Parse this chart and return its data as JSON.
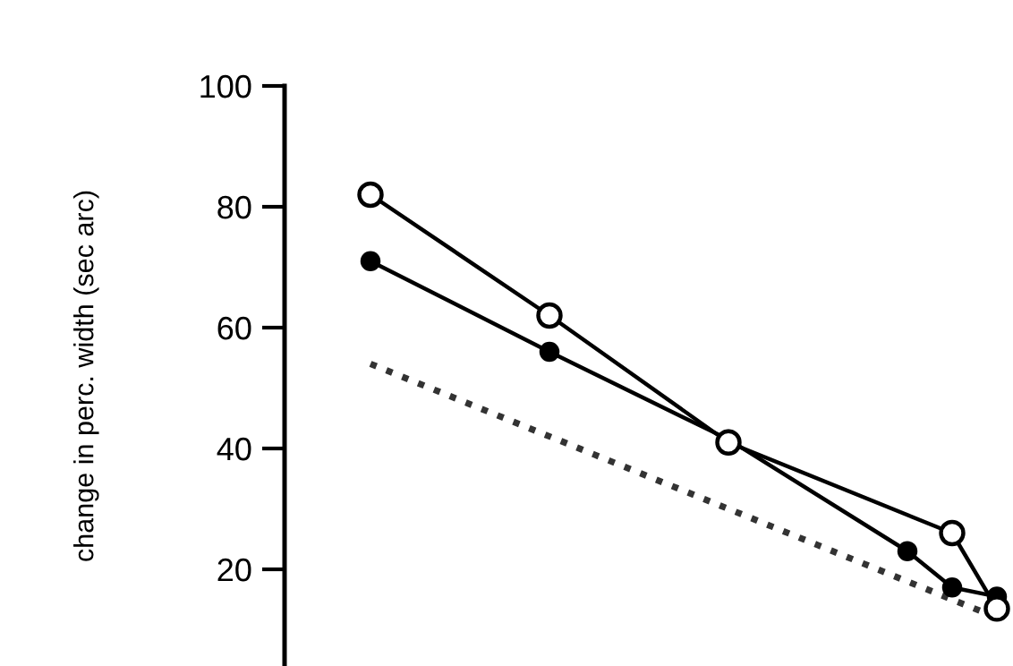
{
  "chart_data": {
    "type": "line",
    "ylabel": "change in perc. width (sec arc)",
    "categories": [
      null,
      null,
      null,
      null,
      null,
      null,
      null,
      null,
      null,
      null,
      null,
      null,
      null,
      null,
      null
    ],
    "series": [
      {
        "color": "#000000",
        "marker": "circle",
        "line_style": "solid",
        "values": [
          82,
          null,
          null,
          null,
          62,
          null,
          null,
          null,
          41,
          null,
          null,
          null,
          null,
          26,
          13.5
        ]
      },
      {
        "color": "#000000",
        "marker": "circle",
        "line_style": "solid",
        "values": [
          71,
          null,
          null,
          null,
          56,
          null,
          null,
          null,
          41.5,
          null,
          null,
          null,
          23,
          17,
          15.5
        ]
      },
      {
        "color": "#333333",
        "marker": "none",
        "line_style": "dotted",
        "values": [
          54,
          51,
          48,
          45,
          42,
          39,
          36,
          33,
          30,
          27,
          24,
          21,
          18,
          15,
          12
        ]
      }
    ],
    "ylim": [
      4,
      100
    ],
    "yticks": [
      20,
      40,
      60,
      80,
      100
    ],
    "tick_labels": "y",
    "grid": false,
    "legend": false
  }
}
